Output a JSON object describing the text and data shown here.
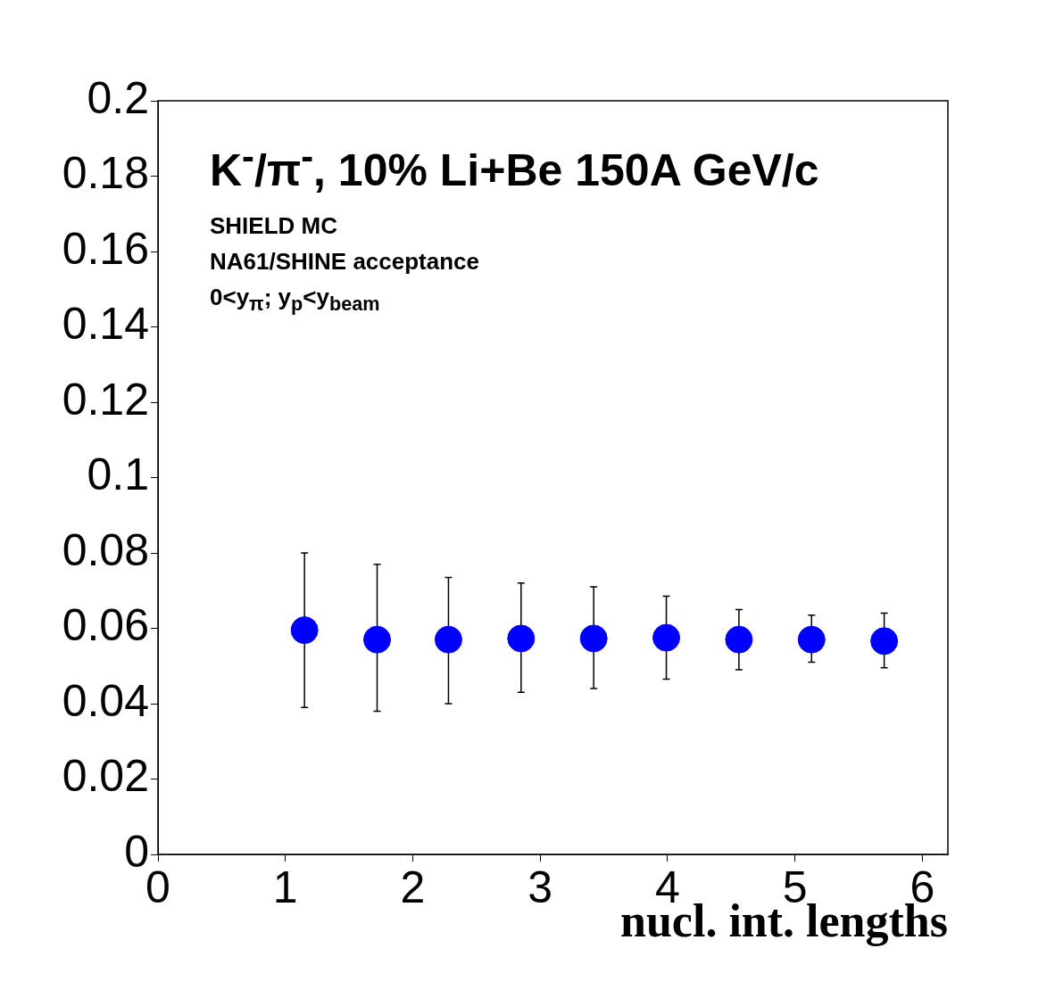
{
  "chart_data": {
    "type": "scatter",
    "title": "K$^{-}$/π$^{-}$, 10% Li+Be 150A GeV/c",
    "xlabel": "nucl. int. lengths",
    "annotations": [
      "SHIELD MC",
      "NA61/SHINE acceptance",
      "0<y$_{π}$; y$_{p}$<y$_{beam}$"
    ],
    "x": [
      1.15,
      1.72,
      2.28,
      2.85,
      3.42,
      3.99,
      4.56,
      5.13,
      5.7
    ],
    "series": [
      {
        "color": "#0000ff",
        "values": [
          0.0595,
          0.057,
          0.057,
          0.0573,
          0.0573,
          0.0575,
          0.057,
          0.057,
          0.0566
        ],
        "errors": [
          [
            0.039,
            0.08
          ],
          [
            0.038,
            0.077
          ],
          [
            0.04,
            0.0735
          ],
          [
            0.043,
            0.072
          ],
          [
            0.044,
            0.071
          ],
          [
            0.0465,
            0.0685
          ],
          [
            0.049,
            0.065
          ],
          [
            0.051,
            0.0635
          ],
          [
            0.0495,
            0.064
          ]
        ]
      }
    ],
    "xlim": [
      0,
      6.2
    ],
    "xticks": [
      0,
      1,
      2,
      3,
      4,
      5,
      6
    ],
    "ylim": [
      0,
      0.2
    ],
    "yticks": [
      0,
      0.02,
      0.04,
      0.06,
      0.08,
      0.1,
      0.12,
      0.14,
      0.16,
      0.18,
      0.2
    ],
    "grid": false,
    "legend": false,
    "marker": "circle"
  }
}
